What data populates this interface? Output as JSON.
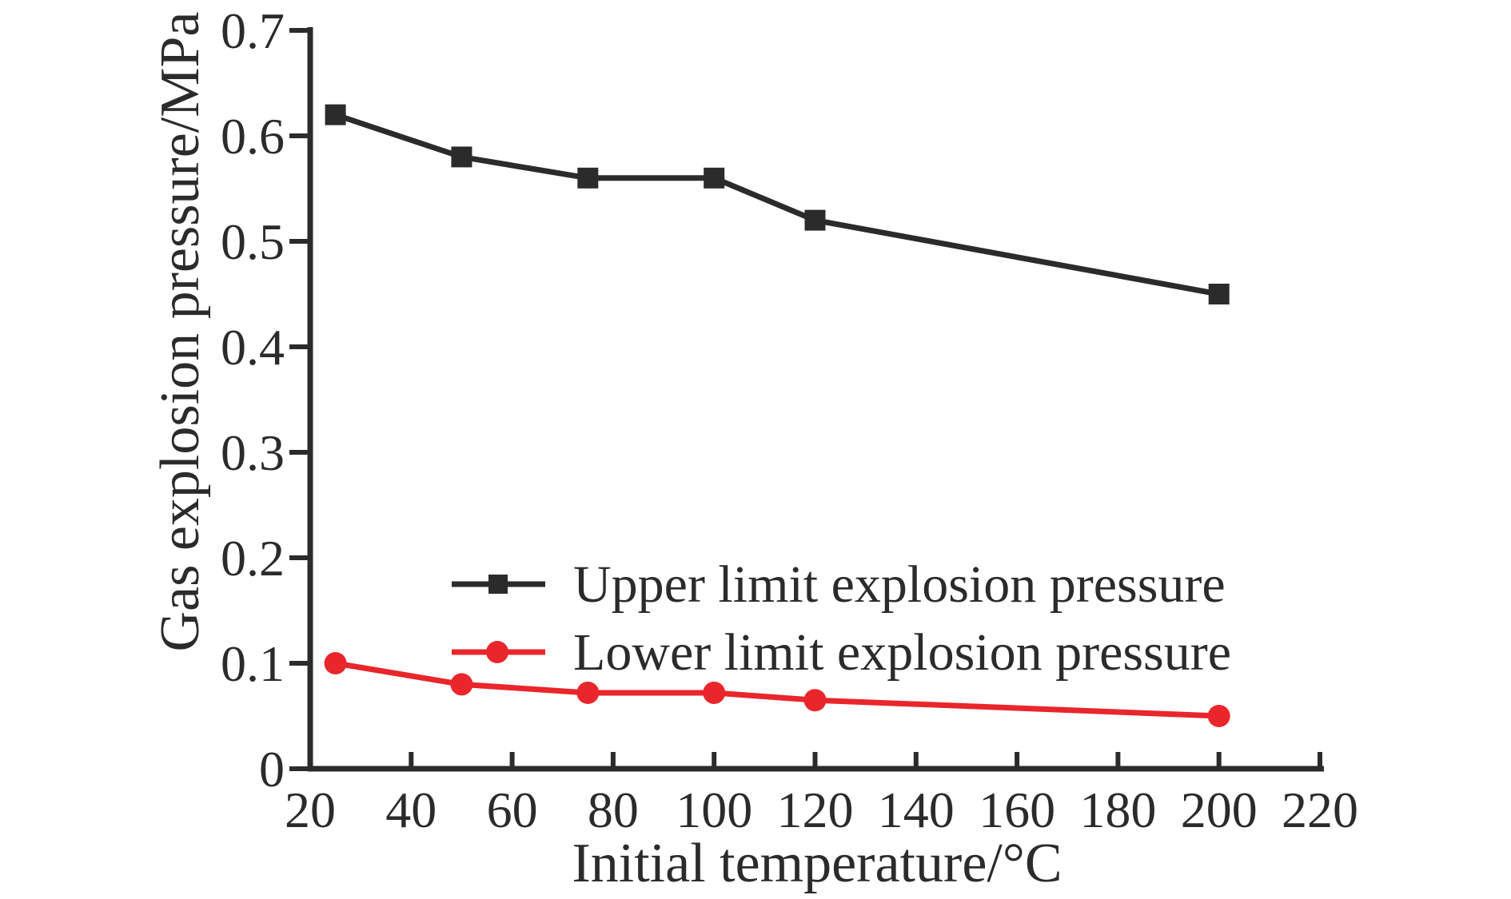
{
  "figure": {
    "background": "#ffffff"
  },
  "colors": {
    "ink": "#2b2b2b",
    "upper_series": "#2b2b2b",
    "lower_series": "#e8262b"
  },
  "chart_data": {
    "type": "line",
    "title": "",
    "xlabel": "Initial temperature/°C",
    "ylabel": "Gas explosion pressure/MPa",
    "x": [
      25,
      50,
      75,
      100,
      120,
      200
    ],
    "series": [
      {
        "name": "Upper limit explosion pressure",
        "marker": "square",
        "color": "#2b2b2b",
        "values": [
          0.62,
          0.58,
          0.56,
          0.56,
          0.52,
          0.45
        ]
      },
      {
        "name": "Lower limit explosion pressure",
        "marker": "circle",
        "color": "#e8262b",
        "values": [
          0.1,
          0.08,
          0.072,
          0.072,
          0.065,
          0.05
        ]
      }
    ],
    "xlim": [
      20,
      220
    ],
    "ylim": [
      0,
      0.7
    ],
    "xticks": [
      20,
      40,
      60,
      80,
      100,
      120,
      140,
      160,
      180,
      200,
      220
    ],
    "yticks": [
      0,
      0.1,
      0.2,
      0.3,
      0.4,
      0.5,
      0.6,
      0.7
    ],
    "grid": false,
    "legend_position": "inside-lower-middle"
  }
}
